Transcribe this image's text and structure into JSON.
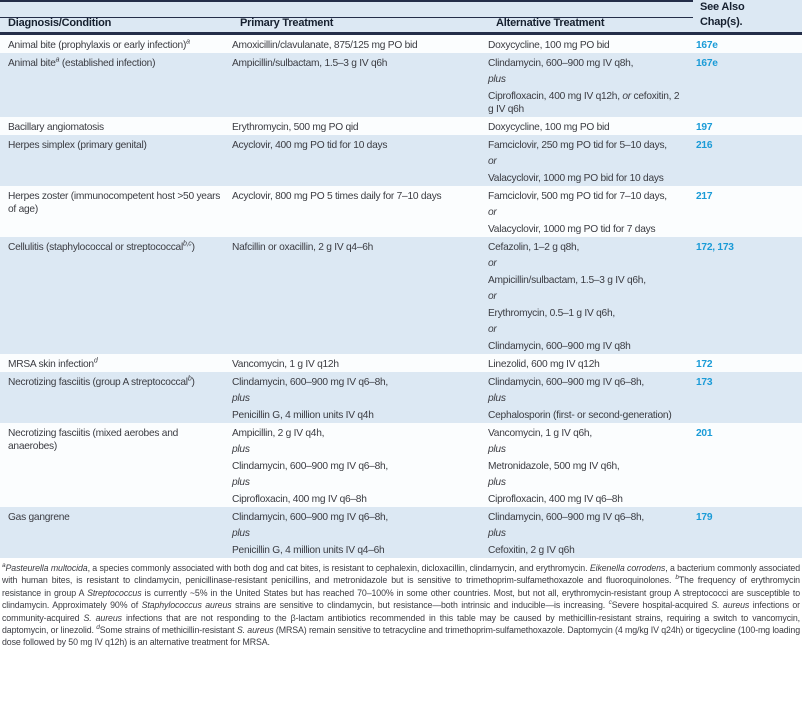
{
  "colors": {
    "header_band": "#dce8f3",
    "row_alt": "#dce8f3",
    "row_base": "#fbfdfe",
    "rule": "#242e49",
    "header_text": "#16202f",
    "body_text": "#3b3c42",
    "link": "#1a9bd7",
    "footnote_text": "#3b3c42"
  },
  "table": {
    "headers": {
      "col1": "Diagnosis/Condition",
      "col2": "Primary Treatment",
      "col3": "Alternative Treatment",
      "col4_line1": "See Also",
      "col4_line2": "Chap(s)."
    },
    "rows": [
      {
        "diagnosis": [
          [
            {
              "t": "Animal bite (prophylaxis or early infection)"
            },
            {
              "t": "a",
              "sup": true
            }
          ]
        ],
        "primary": [
          [
            {
              "t": "Amoxicillin/clavulanate, 875/125 mg PO bid"
            }
          ]
        ],
        "alternative": [
          [
            {
              "t": "Doxycycline, 100 mg PO bid"
            }
          ]
        ],
        "chapters": "167e"
      },
      {
        "diagnosis": [
          [
            {
              "t": "Animal bite"
            },
            {
              "t": "a",
              "sup": true
            },
            {
              "t": " (established infection)"
            }
          ]
        ],
        "primary": [
          [
            {
              "t": "Ampicillin/sulbactam, 1.5–3 g IV q6h"
            }
          ]
        ],
        "alternative": [
          [
            {
              "t": "Clindamycin, 600–900 mg IV q8h,"
            }
          ],
          [
            {
              "t": "plus",
              "it": true
            }
          ],
          [
            {
              "t": "Ciprofloxacin, 400 mg IV q12h, "
            },
            {
              "t": "or",
              "it": true
            },
            {
              "t": " cefoxitin, 2 g IV q6h"
            }
          ]
        ],
        "chapters": "167e"
      },
      {
        "diagnosis": [
          [
            {
              "t": "Bacillary angiomatosis"
            }
          ]
        ],
        "primary": [
          [
            {
              "t": "Erythromycin, 500 mg PO qid"
            }
          ]
        ],
        "alternative": [
          [
            {
              "t": "Doxycycline, 100 mg PO bid"
            }
          ]
        ],
        "chapters": "197"
      },
      {
        "diagnosis": [
          [
            {
              "t": "Herpes simplex (primary genital)"
            }
          ]
        ],
        "primary": [
          [
            {
              "t": "Acyclovir, 400 mg PO tid for 10 days"
            }
          ]
        ],
        "alternative": [
          [
            {
              "t": "Famciclovir, 250 mg PO tid for 5–10 days,"
            }
          ],
          [
            {
              "t": "or",
              "it": true
            }
          ],
          [
            {
              "t": "Valacyclovir, 1000 mg PO bid for 10 days"
            }
          ]
        ],
        "chapters": "216"
      },
      {
        "diagnosis": [
          [
            {
              "t": "Herpes zoster (immunocompetent host >50 years of age)"
            }
          ]
        ],
        "primary": [
          [
            {
              "t": "Acyclovir, 800 mg PO 5 times daily for 7–10 days"
            }
          ]
        ],
        "alternative": [
          [
            {
              "t": "Famciclovir, 500 mg PO tid for 7–10 days,"
            }
          ],
          [
            {
              "t": "or",
              "it": true
            }
          ],
          [
            {
              "t": "Valacyclovir, 1000 mg PO tid for 7 days"
            }
          ]
        ],
        "chapters": "217"
      },
      {
        "diagnosis": [
          [
            {
              "t": "Cellulitis (staphylococcal or streptococcal"
            },
            {
              "t": "b,c",
              "sup": true
            },
            {
              "t": ")"
            }
          ]
        ],
        "primary": [
          [
            {
              "t": "Nafcillin or oxacillin, 2 g IV q4–6h"
            }
          ]
        ],
        "alternative": [
          [
            {
              "t": "Cefazolin, 1–2 g q8h,"
            }
          ],
          [
            {
              "t": "or",
              "it": true
            }
          ],
          [
            {
              "t": "Ampicillin/sulbactam, 1.5–3 g IV q6h,"
            }
          ],
          [
            {
              "t": "or",
              "it": true
            }
          ],
          [
            {
              "t": "Erythromycin, 0.5–1 g IV q6h,"
            }
          ],
          [
            {
              "t": "or",
              "it": true
            }
          ],
          [
            {
              "t": "Clindamycin, 600–900 mg IV q8h"
            }
          ]
        ],
        "chapters": "172, 173"
      },
      {
        "diagnosis": [
          [
            {
              "t": "MRSA skin infection"
            },
            {
              "t": "d",
              "sup": true
            }
          ]
        ],
        "primary": [
          [
            {
              "t": "Vancomycin, 1 g IV q12h"
            }
          ]
        ],
        "alternative": [
          [
            {
              "t": "Linezolid, 600 mg IV q12h"
            }
          ]
        ],
        "chapters": "172"
      },
      {
        "diagnosis": [
          [
            {
              "t": "Necrotizing fasciitis (group A streptococcal"
            },
            {
              "t": "b",
              "sup": true
            },
            {
              "t": ")"
            }
          ]
        ],
        "primary": [
          [
            {
              "t": "Clindamycin, 600–900 mg IV q6–8h,"
            }
          ],
          [
            {
              "t": "plus",
              "it": true
            }
          ],
          [
            {
              "t": "Penicillin G, 4 million units IV q4h"
            }
          ]
        ],
        "alternative": [
          [
            {
              "t": "Clindamycin, 600–900 mg IV q6–8h,"
            }
          ],
          [
            {
              "t": "plus",
              "it": true
            }
          ],
          [
            {
              "t": "Cephalosporin (first- or second-generation)"
            }
          ]
        ],
        "chapters": "173"
      },
      {
        "diagnosis": [
          [
            {
              "t": "Necrotizing fasciitis (mixed aerobes and anaerobes)"
            }
          ]
        ],
        "primary": [
          [
            {
              "t": "Ampicillin, 2 g IV q4h,"
            }
          ],
          [
            {
              "t": "plus",
              "it": true
            }
          ],
          [
            {
              "t": "Clindamycin, 600–900 mg IV q6–8h,"
            }
          ],
          [
            {
              "t": "plus",
              "it": true
            }
          ],
          [
            {
              "t": "Ciprofloxacin, 400 mg IV q6–8h"
            }
          ]
        ],
        "alternative": [
          [
            {
              "t": "Vancomycin, 1 g IV q6h,"
            }
          ],
          [
            {
              "t": "plus",
              "it": true
            }
          ],
          [
            {
              "t": "Metronidazole, 500 mg IV q6h,"
            }
          ],
          [
            {
              "t": "plus",
              "it": true
            }
          ],
          [
            {
              "t": "Ciprofloxacin, 400 mg IV q6–8h"
            }
          ]
        ],
        "chapters": "201"
      },
      {
        "diagnosis": [
          [
            {
              "t": "Gas gangrene"
            }
          ]
        ],
        "primary": [
          [
            {
              "t": "Clindamycin, 600–900 mg IV q6–8h,"
            }
          ],
          [
            {
              "t": "plus",
              "it": true
            }
          ],
          [
            {
              "t": "Penicillin G, 4 million units IV q4–6h"
            }
          ]
        ],
        "alternative": [
          [
            {
              "t": "Clindamycin, 600–900 mg IV q6–8h,"
            }
          ],
          [
            {
              "t": "plus",
              "it": true
            }
          ],
          [
            {
              "t": "Cefoxitin, 2 g IV q6h"
            }
          ]
        ],
        "chapters": "179"
      }
    ]
  },
  "footnotes": {
    "segments": [
      {
        "t": "a",
        "sup": true
      },
      {
        "t": "Pasteurella multocida",
        "it": true
      },
      {
        "t": ", a species commonly associated with both dog and cat bites, is resistant to cephalexin, dicloxacillin, clindamycin, and erythromycin. "
      },
      {
        "t": "Eikenella corrodens",
        "it": true
      },
      {
        "t": ", a bacterium commonly associated with human bites, is resistant to clindamycin, penicillinase-resistant penicillins, and metronidazole but is sensitive to trimethoprim-sulfamethoxazole and fluoroquinolones.  "
      },
      {
        "t": "b",
        "sup": true
      },
      {
        "t": "The frequency of erythromycin resistance in group A "
      },
      {
        "t": "Streptococcus",
        "it": true
      },
      {
        "t": " is currently ~5% in the United States but has reached 70–100% in some other countries. Most, but not all, erythromycin-resistant group A streptococci are susceptible to clindamycin. Approximately 90% of "
      },
      {
        "t": "Staphylococcus aureus",
        "it": true
      },
      {
        "t": " strains are sensitive to clindamycin, but resistance—both intrinsic and inducible—is increasing.  "
      },
      {
        "t": "c",
        "sup": true
      },
      {
        "t": "Severe hospital-acquired "
      },
      {
        "t": "S. aureus",
        "it": true
      },
      {
        "t": " infections or community-acquired "
      },
      {
        "t": "S. aureus",
        "it": true
      },
      {
        "t": " infections that are not responding to the β-lactam antibiotics recommended in this table may be caused by methicillin-resistant strains, requiring a switch to vancomycin, daptomycin, or linezolid.  "
      },
      {
        "t": "d",
        "sup": true
      },
      {
        "t": "Some strains of methicillin-resistant "
      },
      {
        "t": "S. aureus",
        "it": true
      },
      {
        "t": " (MRSA) remain sensitive to tetracycline and trimethoprim-sulfamethoxazole. Daptomycin (4 mg/kg IV q24h) or tigecycline (100-mg loading dose followed by 50 mg IV q12h) is an alternative treatment for MRSA."
      }
    ]
  }
}
